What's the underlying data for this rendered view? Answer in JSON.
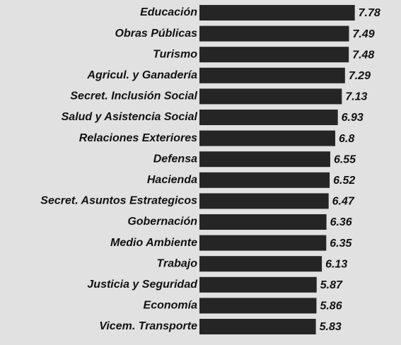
{
  "chart_data": {
    "type": "hbar",
    "categories": [
      "Educación",
      "Obras Públicas",
      "Turismo",
      "Agricul. y Ganadería",
      "Secret. Inclusión Social",
      "Salud y Asistencia Social",
      "Relaciones Exteriores",
      "Defensa",
      "Hacienda",
      "Secret. Asuntos Estrategicos",
      "Gobernación",
      "Medio Ambiente",
      "Trabajo",
      "Justicia y Seguridad",
      "Economía",
      "Vicem. Transporte"
    ],
    "values": [
      7.78,
      7.49,
      7.48,
      7.29,
      7.13,
      6.93,
      6.8,
      6.55,
      6.52,
      6.47,
      6.36,
      6.35,
      6.13,
      5.87,
      5.86,
      5.83
    ],
    "color": "#252525",
    "xlim": [
      0,
      8.5
    ]
  }
}
